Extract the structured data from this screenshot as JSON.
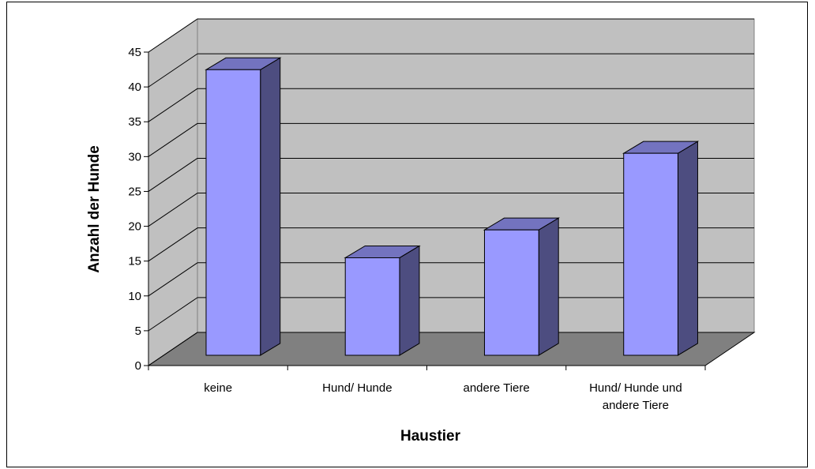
{
  "chart_data": {
    "type": "bar3d",
    "categories": [
      "keine",
      "Hund/ Hunde",
      "andere Tiere",
      "Hund/ Hunde und andere Tiere"
    ],
    "values": [
      41,
      14,
      18,
      29
    ],
    "color": "#9999ff",
    "ylabel": "Anzahl der Hunde",
    "xlabel": "Haustier",
    "ylim": [
      0,
      45
    ],
    "yticks": [
      0,
      5,
      10,
      15,
      20,
      25,
      30,
      35,
      40,
      45
    ],
    "grid": true
  }
}
